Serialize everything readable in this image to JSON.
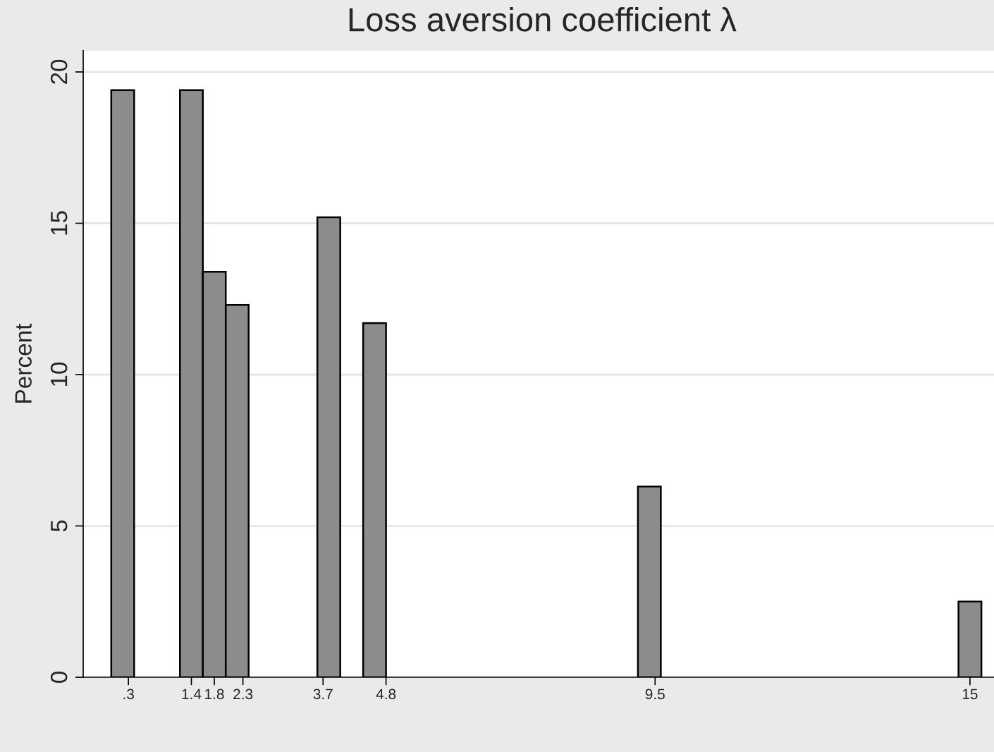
{
  "chart_data": {
    "type": "histogram",
    "title": "Loss aversion coefficient λ",
    "ylabel": "Percent",
    "bins": [
      0,
      0.4,
      0.8,
      1.2,
      1.6,
      2.0,
      2.4,
      2.8,
      3.2,
      3.6,
      4.0,
      4.4,
      4.8,
      5.2,
      5.6,
      6.0,
      6.4,
      6.8,
      7.2,
      7.6,
      8.0,
      8.4,
      8.8,
      9.2,
      9.6,
      10.0,
      10.4,
      10.8,
      11.2,
      11.6,
      12.0,
      12.4,
      12.8,
      13.2,
      13.6,
      14.0,
      14.4,
      14.8,
      15.2
    ],
    "values": [
      19.4,
      0,
      0,
      19.4,
      13.4,
      12.3,
      0,
      0,
      0,
      15.2,
      0,
      11.7,
      0,
      0,
      0,
      0,
      0,
      0,
      0,
      0,
      0,
      0,
      0,
      6.3,
      0,
      0,
      0,
      0,
      0,
      0,
      0,
      0,
      0,
      0,
      0,
      0,
      0,
      2.5
    ],
    "color": "#8c8c8c",
    "xlim": [
      -0.49,
      15.42
    ],
    "ylim": [
      0,
      20.7
    ],
    "xticks": [
      {
        "value": 0.3,
        "label": ".3"
      },
      1.4,
      1.8,
      2.3,
      3.7,
      4.8,
      9.5,
      15
    ],
    "yticks": [
      0,
      5,
      10,
      15,
      20
    ],
    "grid": "y"
  }
}
